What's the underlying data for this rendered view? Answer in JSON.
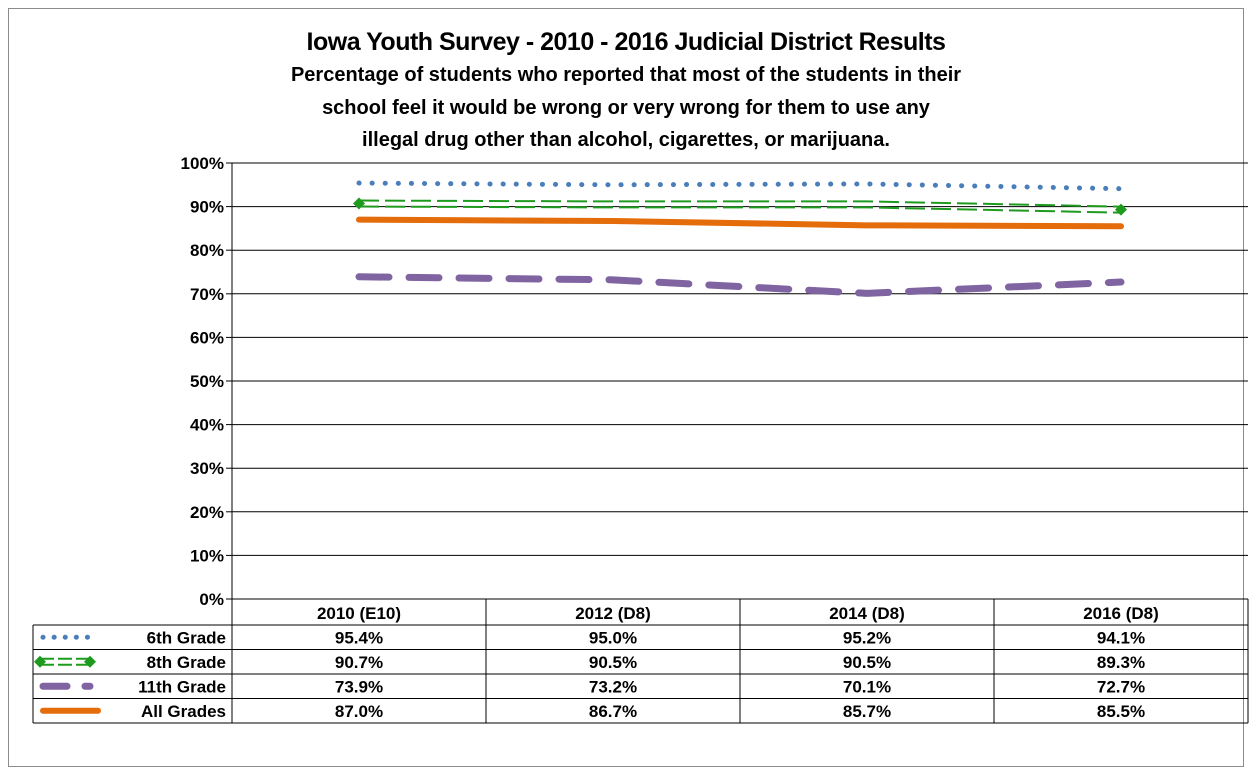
{
  "chart_data": {
    "type": "line",
    "title": "Iowa Youth Survey - 2010 - 2016 Judicial District Results",
    "subtitle_lines": [
      "Percentage of students who reported that most of the students in their",
      "school feel it would be wrong or very wrong for them to use any",
      "illegal drug other than alcohol, cigarettes, or marijuana."
    ],
    "categories": [
      "2010 (E10)",
      "2012 (D8)",
      "2014 (D8)",
      "2016 (D8)"
    ],
    "ylim": [
      0,
      100
    ],
    "yticks": [
      0,
      10,
      20,
      30,
      40,
      50,
      60,
      70,
      80,
      90,
      100
    ],
    "ytick_labels": [
      "0%",
      "10%",
      "20%",
      "30%",
      "40%",
      "50%",
      "60%",
      "70%",
      "80%",
      "90%",
      "100%"
    ],
    "grid": true,
    "legend": "data-table-below",
    "series": [
      {
        "name": "6th Grade",
        "values": [
          95.4,
          95.0,
          95.2,
          94.1
        ],
        "labels": [
          "95.4%",
          "95.0%",
          "95.2%",
          "94.1%"
        ],
        "color": "#4a7ebb",
        "style": "dotted"
      },
      {
        "name": "8th Grade",
        "values": [
          90.7,
          90.5,
          90.5,
          89.3
        ],
        "labels": [
          "90.7%",
          "90.5%",
          "90.5%",
          "89.3%"
        ],
        "color": "#1e9b1e",
        "style": "double-dashed-diamond"
      },
      {
        "name": "11th Grade",
        "values": [
          73.9,
          73.2,
          70.1,
          72.7
        ],
        "labels": [
          "73.9%",
          "73.2%",
          "70.1%",
          "72.7%"
        ],
        "color": "#8064a2",
        "style": "long-dash"
      },
      {
        "name": "All Grades",
        "values": [
          87.0,
          86.7,
          85.7,
          85.5
        ],
        "labels": [
          "87.0%",
          "86.7%",
          "85.7%",
          "85.5%"
        ],
        "color": "#e46c0a",
        "style": "solid"
      }
    ]
  }
}
